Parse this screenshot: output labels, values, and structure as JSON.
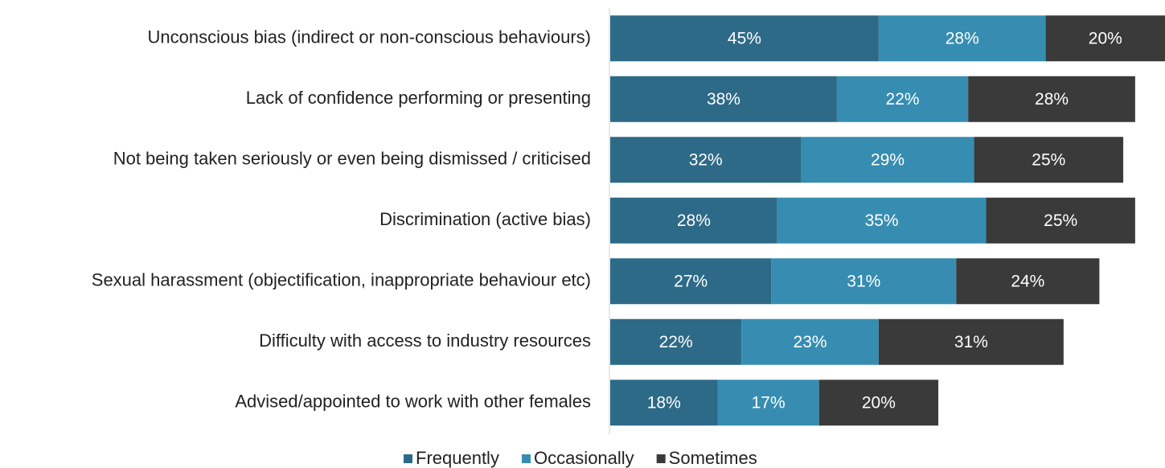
{
  "chart_data": {
    "type": "stacked-bar-horizontal",
    "categories": [
      "Unconscious bias (indirect or non-conscious behaviours)",
      "Lack of confidence performing or presenting",
      "Not being taken seriously or even being dismissed / criticised",
      "Discrimination (active bias)",
      "Sexual harassment (objectification, inappropriate behaviour etc)",
      "Difficulty with access to industry resources",
      "Advised/appointed to work with other females"
    ],
    "series": [
      {
        "name": "Frequently",
        "color": "#2d6a87",
        "values": [
          45,
          38,
          32,
          28,
          27,
          22,
          18
        ],
        "value_labels": [
          "45%",
          "38%",
          "32%",
          "28%",
          "27%",
          "22%",
          "18%"
        ]
      },
      {
        "name": "Occasionally",
        "color": "#368db1",
        "values": [
          28,
          22,
          29,
          35,
          31,
          23,
          17
        ],
        "value_labels": [
          "28%",
          "22%",
          "29%",
          "35%",
          "31%",
          "23%",
          "17%"
        ]
      },
      {
        "name": "Sometimes",
        "color": "#3a3a3a",
        "values": [
          20,
          28,
          25,
          25,
          24,
          31,
          20
        ],
        "value_labels": [
          "20%",
          "28%",
          "25%",
          "25%",
          "24%",
          "31%",
          "20%"
        ]
      }
    ],
    "legend": "bottom"
  }
}
